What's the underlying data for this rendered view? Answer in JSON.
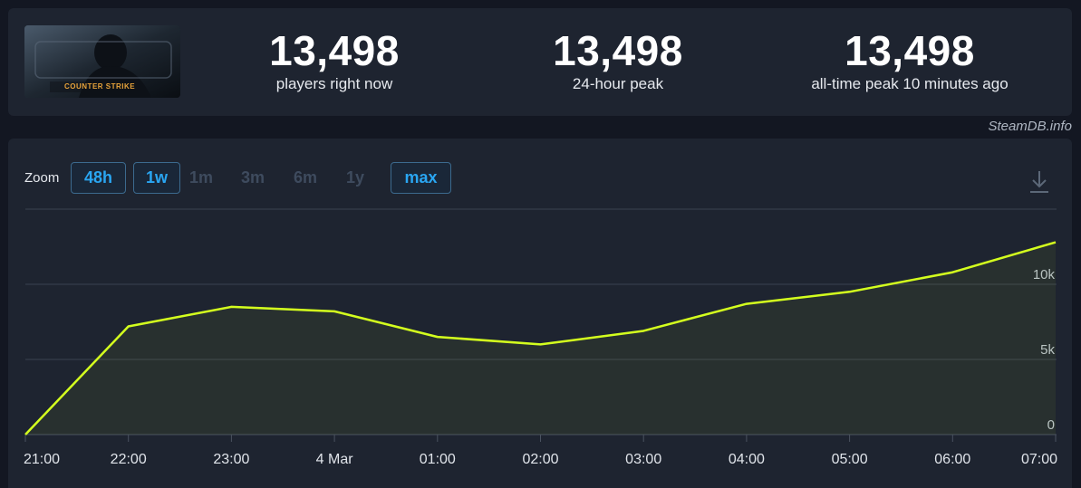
{
  "stats": {
    "current": {
      "value": "13,498",
      "label": "players right now"
    },
    "peak_24h": {
      "value": "13,498",
      "label": "24-hour peak"
    },
    "all_time": {
      "value": "13,498",
      "label": "all-time peak 10 minutes ago"
    }
  },
  "game_banner": {
    "logo_text": "COUNTER STRIKE"
  },
  "credit": "SteamDB.info",
  "zoom": {
    "label": "Zoom",
    "options": [
      {
        "label": "48h",
        "active": true
      },
      {
        "label": "1w",
        "active": true
      },
      {
        "label": "1m",
        "active": false
      },
      {
        "label": "3m",
        "active": false
      },
      {
        "label": "6m",
        "active": false
      },
      {
        "label": "1y",
        "active": false
      },
      {
        "label": "max",
        "active": true
      }
    ]
  },
  "colors": {
    "line": "#d4ff1e",
    "active_button_text": "#2aa6f2",
    "inactive_button_text": "#3e4b5e"
  },
  "icons": {
    "download": "download-icon"
  },
  "chart_data": {
    "type": "line",
    "x": [
      "21:00",
      "22:00",
      "23:00",
      "4 Mar",
      "01:00",
      "02:00",
      "03:00",
      "04:00",
      "05:00",
      "06:00",
      "07:00"
    ],
    "values": [
      0,
      7200,
      8500,
      8200,
      6500,
      6000,
      6900,
      8700,
      9500,
      10800,
      12800
    ],
    "y_ticks": [
      0,
      5000,
      10000
    ],
    "y_tick_labels": [
      "0",
      "5k",
      "10k"
    ],
    "ylim": [
      0,
      15000
    ],
    "grid": true,
    "legend": "none"
  }
}
